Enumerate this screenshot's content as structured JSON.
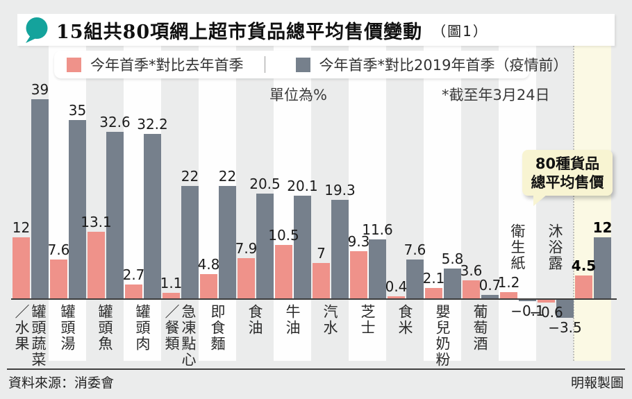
{
  "chart_data": {
    "type": "bar",
    "title": "15組共80項網上超市貨品總平均售價變動",
    "figure_label": "（圖1）",
    "unit_label": "單位為%",
    "footnote": "*截至年3月24日",
    "categories": [
      "罐頭蔬菜／水果",
      "罐頭湯",
      "罐頭魚",
      "罐頭肉",
      "急凍點心／餐類",
      "即食麵",
      "食油",
      "牛油",
      "汽水",
      "芝士",
      "食米",
      "嬰兒奶粉",
      "葡萄酒",
      "衛生紙",
      "沐浴露",
      "80種貨品總平均售價"
    ],
    "series": [
      {
        "name": "今年首季*對比去年首季",
        "color": "#ef928a",
        "values": [
          12,
          7.6,
          13.1,
          2.7,
          1.1,
          4.8,
          7.9,
          10.5,
          7,
          9.3,
          0.4,
          2.1,
          3.6,
          1.2,
          -0.6,
          4.5
        ]
      },
      {
        "name": "今年首季*對比2019年首季（疫情前）",
        "color": "#76808c",
        "values": [
          39,
          35,
          32.6,
          32.2,
          22,
          22,
          20.5,
          20.1,
          19.3,
          11.6,
          7.6,
          5.8,
          0.7,
          -0.1,
          -3.5,
          12
        ]
      }
    ],
    "ylim": [
      -5,
      40
    ],
    "grid": false,
    "legend_position": "top",
    "value_labels": true,
    "highlight_column": 15,
    "highlight_callout": [
      "80種貨品",
      "總平均售價"
    ],
    "labels_above_axis_indices": [
      13,
      14
    ],
    "source": "資料來源：消委會",
    "credit": "明報製圖",
    "colors": {
      "accent_teal": "#14a39c",
      "highlight_stripe": "#fbf9e4",
      "callout_bg": "#f8f4d2",
      "stripe_white": "#fefefe",
      "page_bg": "#ebecec"
    }
  }
}
